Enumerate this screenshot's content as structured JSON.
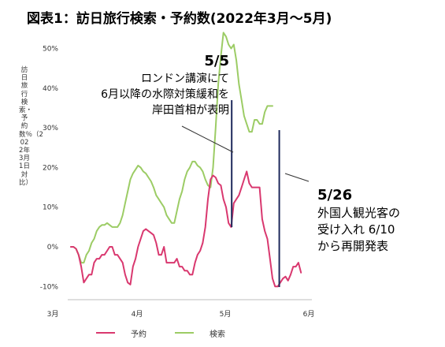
{
  "title": "図表1：訪日旅行検索・予約数(2022年3月～5月)",
  "chart_data": {
    "type": "line",
    "ylabel": "訪日旅行検索・予約数％（2022年3月1日対比）",
    "xlabel": "",
    "x_ticks": [
      "3月",
      "4月",
      "5月",
      "6月"
    ],
    "y_ticks": [
      "50%",
      "40%",
      "30%",
      "20%",
      "10%",
      "0%",
      "-10%"
    ],
    "ylim": [
      -13,
      54
    ],
    "x_range_days": [
      0,
      92
    ],
    "grid": false,
    "legend_position": "bottom",
    "series": [
      {
        "name": "予約",
        "color": "#d9386f",
        "points": [
          [
            0,
            0
          ],
          [
            1,
            0
          ],
          [
            2,
            -0.5
          ],
          [
            3,
            -2
          ],
          [
            4,
            -5
          ],
          [
            5,
            -9
          ],
          [
            6,
            -8
          ],
          [
            7,
            -7
          ],
          [
            8,
            -7
          ],
          [
            9,
            -4
          ],
          [
            10,
            -3
          ],
          [
            11,
            -3
          ],
          [
            12,
            -2
          ],
          [
            13,
            -2
          ],
          [
            14,
            -1
          ],
          [
            15,
            0
          ],
          [
            16,
            0
          ],
          [
            17,
            -2
          ],
          [
            18,
            -2
          ],
          [
            19,
            -3
          ],
          [
            20,
            -4
          ],
          [
            21,
            -7
          ],
          [
            22,
            -9
          ],
          [
            23,
            -9.5
          ],
          [
            24,
            -5
          ],
          [
            25,
            -3
          ],
          [
            26,
            0
          ],
          [
            27,
            2
          ],
          [
            28,
            4
          ],
          [
            29,
            4.5
          ],
          [
            30,
            4
          ],
          [
            31,
            3.5
          ],
          [
            32,
            3
          ],
          [
            33,
            1
          ],
          [
            34,
            -2
          ],
          [
            35,
            -2
          ],
          [
            36,
            0
          ],
          [
            37,
            -4
          ],
          [
            38,
            -4
          ],
          [
            39,
            -4
          ],
          [
            40,
            -4
          ],
          [
            41,
            -3
          ],
          [
            42,
            -5
          ],
          [
            43,
            -5
          ],
          [
            44,
            -6
          ],
          [
            45,
            -6
          ],
          [
            46,
            -7
          ],
          [
            47,
            -7
          ],
          [
            48,
            -4
          ],
          [
            49,
            -2
          ],
          [
            50,
            -1
          ],
          [
            51,
            1
          ],
          [
            52,
            5
          ],
          [
            53,
            12
          ],
          [
            54,
            17
          ],
          [
            55,
            18
          ],
          [
            56,
            17.5
          ],
          [
            57,
            16
          ],
          [
            58,
            15.5
          ],
          [
            59,
            12
          ],
          [
            60,
            10
          ],
          [
            61,
            6
          ],
          [
            62,
            5
          ],
          [
            63,
            11
          ],
          [
            64,
            12
          ],
          [
            65,
            13
          ],
          [
            66,
            15
          ],
          [
            67,
            17
          ],
          [
            68,
            19
          ],
          [
            69,
            16
          ],
          [
            70,
            15
          ],
          [
            71,
            15
          ],
          [
            72,
            15
          ],
          [
            73,
            15
          ],
          [
            74,
            7
          ],
          [
            75,
            4
          ],
          [
            76,
            2
          ],
          [
            77,
            -3
          ],
          [
            78,
            -8
          ],
          [
            79,
            -10
          ],
          [
            80,
            -10
          ],
          [
            81,
            -9
          ],
          [
            82,
            -8
          ],
          [
            83,
            -7.5
          ],
          [
            84,
            -8.5
          ],
          [
            85,
            -7
          ],
          [
            86,
            -5
          ],
          [
            87,
            -5
          ],
          [
            88,
            -4
          ],
          [
            89,
            -6.5
          ]
        ]
      },
      {
        "name": "検索",
        "color": "#9ccc65",
        "points": [
          [
            0,
            0
          ],
          [
            1,
            0
          ],
          [
            2,
            -0.5
          ],
          [
            3,
            -2
          ],
          [
            4,
            -4
          ],
          [
            5,
            -4
          ],
          [
            6,
            -2
          ],
          [
            7,
            -1
          ],
          [
            8,
            1
          ],
          [
            9,
            2
          ],
          [
            10,
            4
          ],
          [
            11,
            5
          ],
          [
            12,
            5.5
          ],
          [
            13,
            5.5
          ],
          [
            14,
            6
          ],
          [
            15,
            5.5
          ],
          [
            16,
            5
          ],
          [
            17,
            5
          ],
          [
            18,
            5
          ],
          [
            19,
            6
          ],
          [
            20,
            8
          ],
          [
            21,
            11
          ],
          [
            22,
            14
          ],
          [
            23,
            17
          ],
          [
            24,
            18.5
          ],
          [
            25,
            19.5
          ],
          [
            26,
            20.5
          ],
          [
            27,
            20
          ],
          [
            28,
            19
          ],
          [
            29,
            18.5
          ],
          [
            30,
            17.5
          ],
          [
            31,
            16.5
          ],
          [
            32,
            15
          ],
          [
            33,
            13
          ],
          [
            34,
            12
          ],
          [
            35,
            11
          ],
          [
            36,
            10
          ],
          [
            37,
            8
          ],
          [
            38,
            7
          ],
          [
            39,
            6
          ],
          [
            40,
            6
          ],
          [
            41,
            9
          ],
          [
            42,
            12
          ],
          [
            43,
            14
          ],
          [
            44,
            17
          ],
          [
            45,
            19
          ],
          [
            46,
            20
          ],
          [
            47,
            21.5
          ],
          [
            48,
            21.5
          ],
          [
            49,
            20.5
          ],
          [
            50,
            20
          ],
          [
            51,
            19
          ],
          [
            52,
            17
          ],
          [
            53,
            15.5
          ],
          [
            54,
            15
          ],
          [
            55,
            20
          ],
          [
            56,
            30
          ],
          [
            57,
            41
          ],
          [
            58,
            48
          ],
          [
            59,
            54
          ],
          [
            60,
            53
          ],
          [
            61,
            51
          ],
          [
            62,
            50
          ],
          [
            63,
            51
          ],
          [
            64,
            47
          ],
          [
            65,
            41
          ],
          [
            66,
            37
          ],
          [
            67,
            33
          ],
          [
            68,
            31
          ],
          [
            69,
            29
          ],
          [
            70,
            29
          ],
          [
            71,
            32
          ],
          [
            72,
            32
          ],
          [
            73,
            31
          ],
          [
            74,
            31
          ],
          [
            75,
            34
          ],
          [
            76,
            35.5
          ],
          [
            77,
            35.5
          ],
          [
            78,
            35.5
          ]
        ]
      }
    ],
    "annotations": [
      {
        "head": "5/5",
        "lines": [
          "ロンドン講演にて",
          "6月以降の水際対策緩和を",
          "岸田首相が表明"
        ]
      },
      {
        "head": "5/26",
        "lines": [
          "外国人観光客の",
          "受け入れ 6/10",
          "から再開発表"
        ]
      }
    ]
  }
}
